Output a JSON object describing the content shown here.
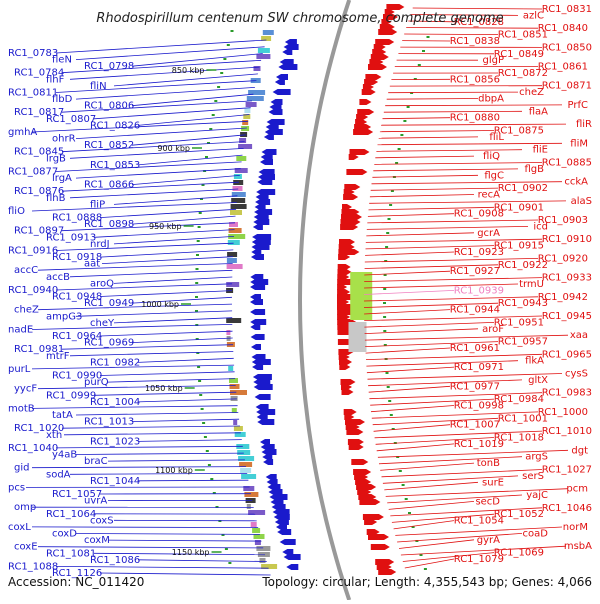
{
  "title": "Rhodospirillum centenum SW chromosome, complete genome",
  "accession": "Accession: NC_011420",
  "topology": "Topology: circular; Length: 4,355,543 bp; Genes: 4,066",
  "kbp_marks": [
    "850 kbp",
    "900 kbp",
    "950 kbp",
    "1000 kbp",
    "1050 kbp",
    "1100 kbp",
    "1150 kbp"
  ],
  "colors": {
    "minus_strand": "#1a1acc",
    "plus_strand": "#e01010",
    "highlight": "#f080c0",
    "backbone": "#999999",
    "tick": "#2a9a2a"
  },
  "left_labels": [
    "RC1_0783",
    "fleN",
    "RC1_0798",
    "RC1_0784",
    "flhF",
    "fliN",
    "RC1_0811",
    "flbD",
    "RC1_0806",
    "RC1_0817",
    "RC1_0807",
    "RC1_0826",
    "gmhA",
    "ohrR",
    "RC1_0852",
    "RC1_0845",
    "lrgB",
    "RC1_0853",
    "RC1_0877",
    "lrgA",
    "RC1_0866",
    "RC1_0876",
    "flhB",
    "fliP",
    "fliO",
    "RC1_0888",
    "RC1_0898",
    "RC1_0897",
    "RC1_0913",
    "nrdJ",
    "RC1_0916",
    "RC1_0918",
    "aat",
    "accC",
    "accB",
    "aroQ",
    "RC1_0940",
    "RC1_0948",
    "RC1_0949",
    "cheZ",
    "ampG3",
    "cheY",
    "nadE",
    "RC1_0964",
    "RC1_0969",
    "RC1_0981",
    "mtrF",
    "RC1_0982",
    "purL",
    "RC1_0990",
    "purQ",
    "yycF",
    "RC1_0999",
    "RC1_1004",
    "motB",
    "tatA",
    "RC1_1013",
    "RC1_1020",
    "xth",
    "RC1_1023",
    "RC1_1040",
    "y4aB",
    "braC",
    "gid",
    "sodA",
    "RC1_1044",
    "pcs",
    "RC1_1057",
    "uvrA",
    "omp",
    "RC1_1064",
    "coxS",
    "coxL",
    "coxD",
    "coxM",
    "coxE",
    "RC1_1081",
    "RC1_1086",
    "RC1_1088",
    "RC1_1126"
  ],
  "right_labels": [
    "RC1_0831",
    "azlC",
    "RC1_0828",
    "RC1_0840",
    "RC1_0851",
    "RC1_0838",
    "RC1_0850",
    "RC1_0849",
    "glgP",
    "RC1_0861",
    "RC1_0872",
    "RC1_0856",
    "RC1_0871",
    "cheZ",
    "dbpA",
    "PrfC",
    "flaA",
    "RC1_0880",
    "fliR",
    "RC1_0875",
    "fliL",
    "fliM",
    "fliE",
    "fliQ",
    "RC1_0885",
    "flgB",
    "flgC",
    "cckA",
    "RC1_0902",
    "recA",
    "alaS",
    "RC1_0901",
    "RC1_0908",
    "RC1_0903",
    "icd",
    "gcrA",
    "RC1_0910",
    "RC1_0915",
    "RC1_0923",
    "RC1_0920",
    "RC1_0922",
    "RC1_0927",
    "RC1_0933",
    "trmU",
    "RC1_0939",
    "RC1_0942",
    "RC1_0943",
    "RC1_0944",
    "RC1_0945",
    "RC1_0951",
    "aroF",
    "xaa",
    "RC1_0957",
    "RC1_0961",
    "RC1_0965",
    "flkA",
    "RC1_0971",
    "cysS",
    "gltX",
    "RC1_0977",
    "RC1_0983",
    "RC1_0984",
    "RC1_0998",
    "RC1_1000",
    "RC1_1001",
    "RC1_1007",
    "RC1_1010",
    "RC1_1018",
    "RC1_1019",
    "dgt",
    "argS",
    "tonB",
    "RC1_1027",
    "serS",
    "surE",
    "pcm",
    "yajC",
    "secD",
    "RC1_1046",
    "RC1_1052",
    "RC1_1054",
    "norM",
    "coaD",
    "gyrA",
    "msbA",
    "RC1_1069",
    "RC1_1079"
  ]
}
